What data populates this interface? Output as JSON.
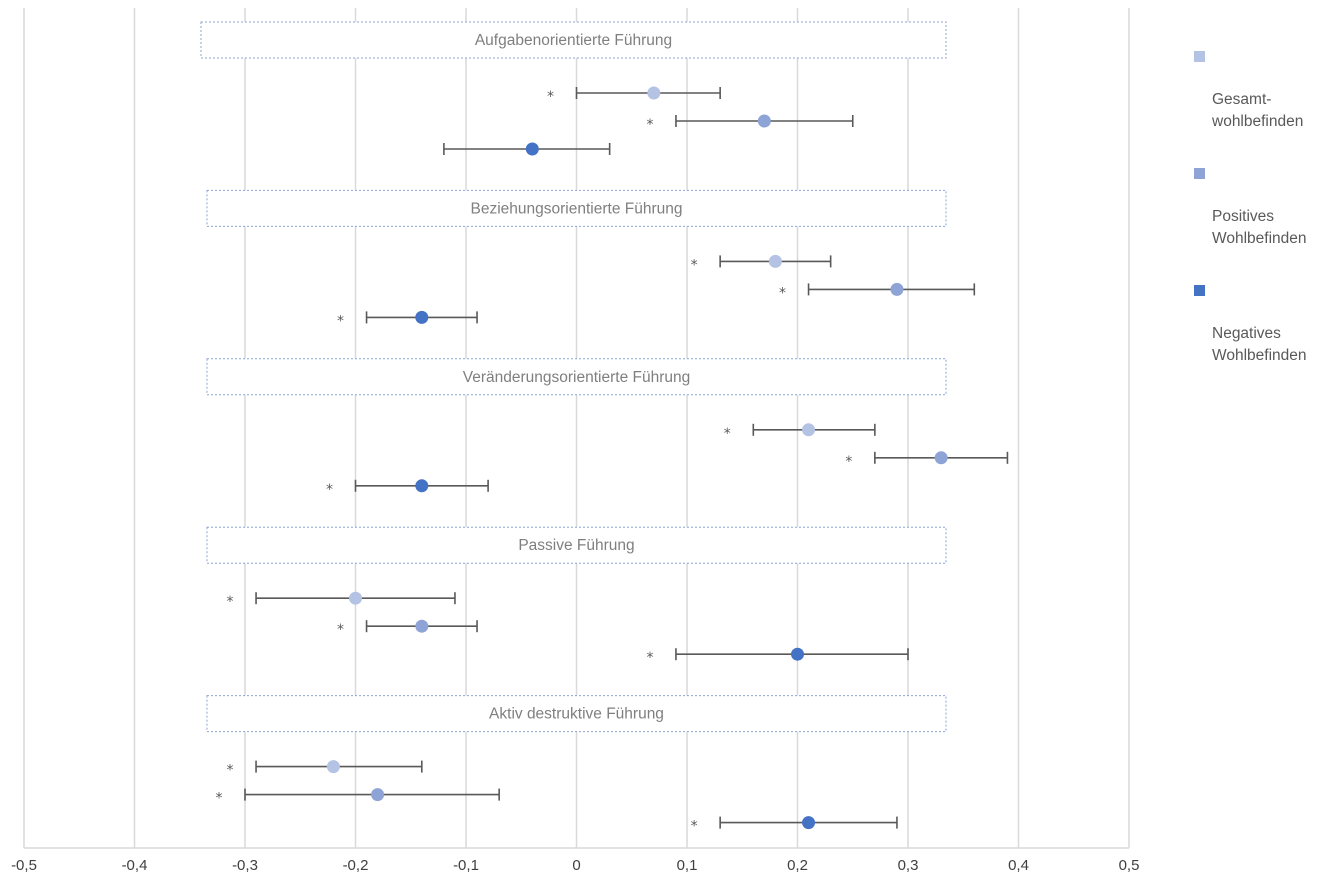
{
  "colors": {
    "series": [
      "#b4c2e4",
      "#8ea3d6",
      "#4472c4"
    ],
    "grid": "#d9d9d9",
    "errorbar": "#595959"
  },
  "chart_data": {
    "type": "scatter",
    "title": "",
    "xlabel": "",
    "ylabel": "",
    "xlim": [
      -0.5,
      0.5
    ],
    "x_ticks": [
      "-0,5",
      "-0,4",
      "-0,3",
      "-0,2",
      "-0,1",
      "0",
      "0,1",
      "0,2",
      "0,3",
      "0,4",
      "0,5"
    ],
    "grid": "vertical",
    "legend_position": "top-right",
    "series": [
      {
        "name": "Gesamt-\nwohlbefinden"
      },
      {
        "name": "Positives\nWohlbefinden"
      },
      {
        "name": "Negatives\nWohlbefinden"
      }
    ],
    "significance_marker": "*",
    "groups": [
      {
        "label": "Aufgabenorientierte Führung",
        "points": [
          {
            "estimate": 0.07,
            "ci": [
              0.0,
              0.13
            ],
            "significant": true
          },
          {
            "estimate": 0.17,
            "ci": [
              0.09,
              0.25
            ],
            "significant": true
          },
          {
            "estimate": -0.04,
            "ci": [
              -0.12,
              0.03
            ],
            "significant": false
          }
        ]
      },
      {
        "label": "Beziehungsorientierte Führung",
        "points": [
          {
            "estimate": 0.18,
            "ci": [
              0.13,
              0.23
            ],
            "significant": true
          },
          {
            "estimate": 0.29,
            "ci": [
              0.21,
              0.36
            ],
            "significant": true
          },
          {
            "estimate": -0.14,
            "ci": [
              -0.19,
              -0.09
            ],
            "significant": true
          }
        ]
      },
      {
        "label": "Veränderungsorientierte Führung",
        "points": [
          {
            "estimate": 0.21,
            "ci": [
              0.16,
              0.27
            ],
            "significant": true
          },
          {
            "estimate": 0.33,
            "ci": [
              0.27,
              0.39
            ],
            "significant": true
          },
          {
            "estimate": -0.14,
            "ci": [
              -0.2,
              -0.08
            ],
            "significant": true
          }
        ]
      },
      {
        "label": "Passive Führung",
        "points": [
          {
            "estimate": -0.2,
            "ci": [
              -0.29,
              -0.11
            ],
            "significant": true
          },
          {
            "estimate": -0.14,
            "ci": [
              -0.19,
              -0.09
            ],
            "significant": true
          },
          {
            "estimate": 0.2,
            "ci": [
              0.09,
              0.3
            ],
            "significant": true
          }
        ]
      },
      {
        "label": "Aktiv destruktive Führung",
        "points": [
          {
            "estimate": -0.22,
            "ci": [
              -0.29,
              -0.14
            ],
            "significant": true
          },
          {
            "estimate": -0.18,
            "ci": [
              -0.3,
              -0.07
            ],
            "significant": true
          },
          {
            "estimate": 0.21,
            "ci": [
              0.13,
              0.29
            ],
            "significant": true
          }
        ]
      }
    ]
  }
}
